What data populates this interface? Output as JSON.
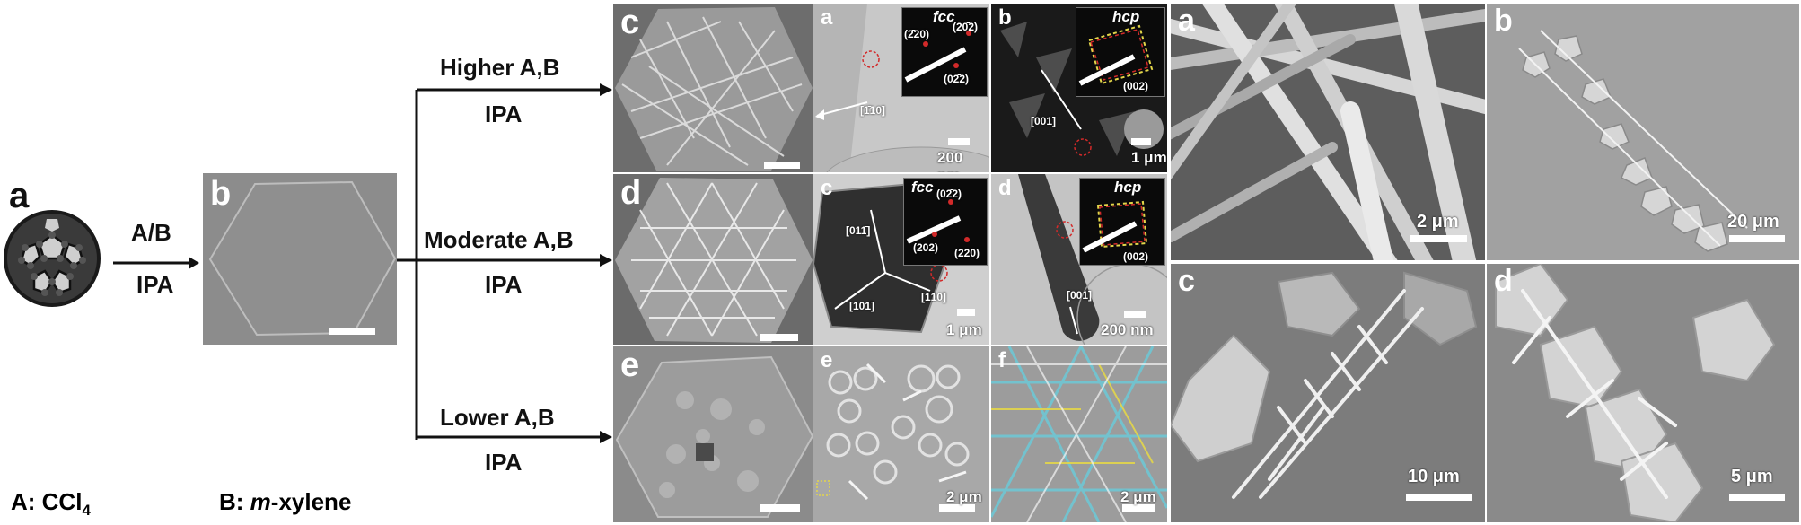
{
  "left_scheme": {
    "panel_a_letter": "a",
    "panel_b_letter": "b",
    "panel_c_letter": "c",
    "panel_d_letter": "d",
    "panel_e_letter": "e",
    "arrow_main_top": "A/B",
    "arrow_main_bottom": "IPA",
    "branch_top_label": "Higher A,B",
    "branch_top_sub": "IPA",
    "branch_mid_label": "Moderate A,B",
    "branch_mid_sub": "IPA",
    "branch_bot_label": "Lower A,B",
    "branch_bot_sub": "IPA",
    "legend_a_prefix": "A: CCl",
    "legend_a_subscript": "4",
    "legend_b_prefix": "B: ",
    "legend_b_italic": "m",
    "legend_b_suffix": "-xylene"
  },
  "middle_tem": {
    "a": {
      "letter": "a",
      "phase": "fcc",
      "spots": [
        "(2̄20)",
        "(20̄2)",
        "(02̄2)"
      ],
      "direction": "[1̄10]",
      "scale": "200 nm"
    },
    "b": {
      "letter": "b",
      "phase": "hcp",
      "spots": [
        "(002)"
      ],
      "direction": "[001]",
      "scale": "1 μm"
    },
    "c": {
      "letter": "c",
      "phase": "fcc",
      "spots": [
        "(02̄2)",
        "(202)",
        "(2̄20)"
      ],
      "direction_1": "[011̄]",
      "direction_2": "[101̄]",
      "direction_3": "[1̄10]",
      "scale": "1 μm"
    },
    "d": {
      "letter": "d",
      "phase": "hcp",
      "spots": [
        "(002)"
      ],
      "direction": "[001]",
      "scale": "200 nm"
    },
    "e": {
      "letter": "e",
      "scale": "2 μm"
    },
    "f": {
      "letter": "f",
      "scale": "2 μm"
    }
  },
  "right_sem": {
    "a": {
      "letter": "a",
      "scale": "2 μm"
    },
    "b": {
      "letter": "b",
      "scale": "20 μm"
    },
    "c": {
      "letter": "c",
      "scale": "10 μm"
    },
    "d": {
      "letter": "d",
      "scale": "5 μm"
    }
  },
  "colors": {
    "sem_bg": "#8a8a8a",
    "tem_bg": "#c9c9c9",
    "inset_bg": "#0a0a0a",
    "red_dashed": "#d22a2a",
    "cyan_overlay": "#6fc7d4",
    "yellow_overlay": "#e3d64a"
  }
}
